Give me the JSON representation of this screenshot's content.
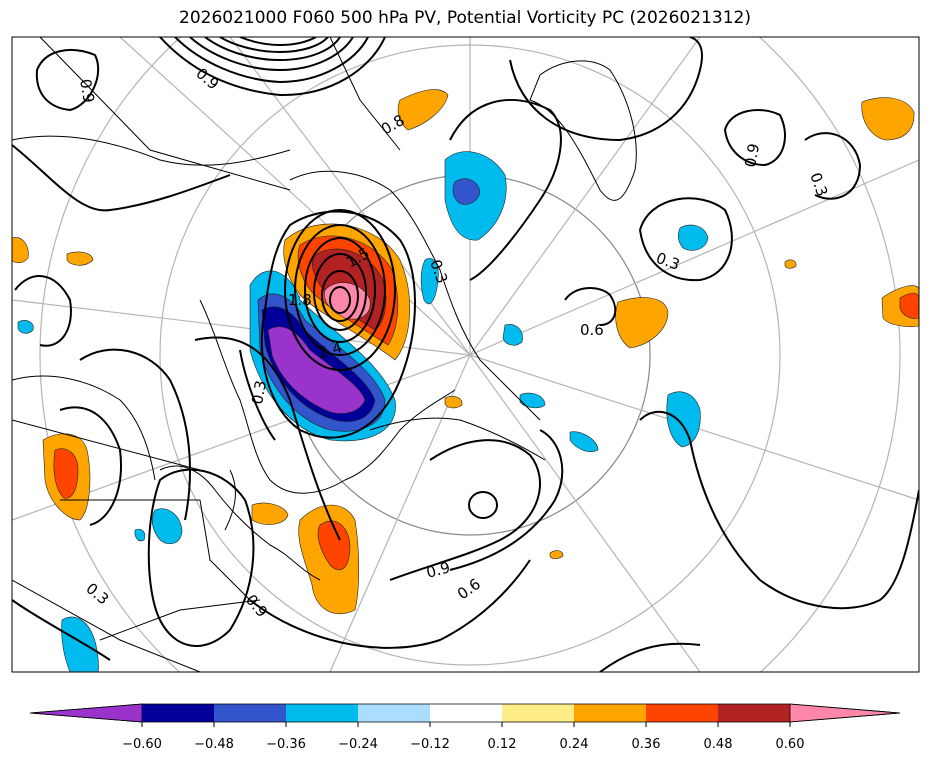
{
  "title": "2026021000 F060 500 hPa PV, Potential Vorticity PC (2026021312)",
  "colorbar": {
    "levels": [
      "−0.60",
      "−0.48",
      "−0.36",
      "−0.24",
      "−0.12",
      "0.12",
      "0.24",
      "0.36",
      "0.48",
      "0.60"
    ],
    "colors": {
      "lt_-0.60": "#9933cc",
      "-0.60_-0.48": "#000099",
      "-0.48_-0.36": "#3355cc",
      "-0.36_-0.24": "#00bbee",
      "-0.24_-0.12": "#aaddff",
      "-0.12_0.12": "#ffffff",
      "0.12_0.24": "#ffee88",
      "0.24_0.36": "#ffa500",
      "0.36_0.48": "#ff4400",
      "0.48_0.60": "#b22222",
      "gt_0.60": "#ff88aa"
    }
  },
  "contour_labels": [
    {
      "id": "nw1",
      "text": "0.9"
    },
    {
      "id": "nw2",
      "text": "0.9"
    },
    {
      "id": "ne1",
      "text": "0.9"
    },
    {
      "id": "ne2",
      "text": "0.3"
    },
    {
      "id": "ne3",
      "text": "0.3"
    },
    {
      "id": "mid1",
      "text": "0.6"
    },
    {
      "id": "low1",
      "text": "1.5"
    },
    {
      "id": "low2",
      "text": "1.8"
    },
    {
      "id": "low3",
      "text": "2.4"
    },
    {
      "id": "low4",
      "text": "0.3"
    },
    {
      "id": "s1",
      "text": "0.9"
    },
    {
      "id": "s2",
      "text": "0.6"
    },
    {
      "id": "w1",
      "text": "0.3"
    },
    {
      "id": "w2",
      "text": "0.9"
    },
    {
      "id": "c1",
      "text": "0.3"
    },
    {
      "id": "c2",
      "text": "0.8"
    }
  ]
}
